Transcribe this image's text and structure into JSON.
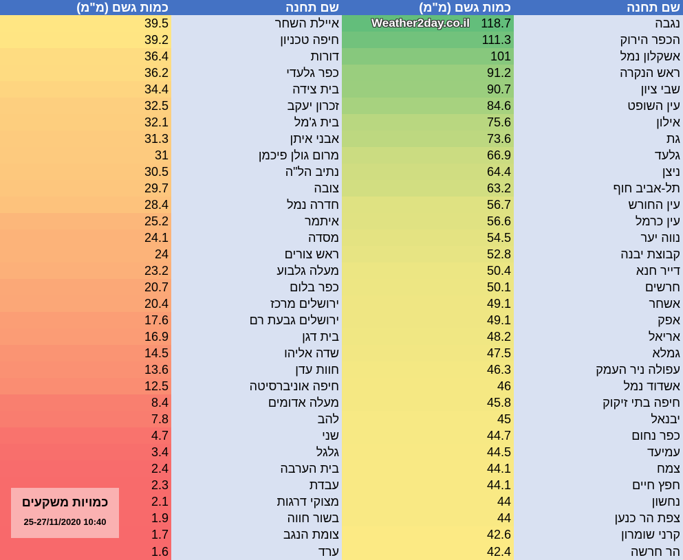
{
  "headers": {
    "station": "שם תחנה",
    "rain": "כמות גשם (מ\"מ)"
  },
  "watermark": "Weather2day.co.il",
  "note": {
    "title": "כמויות משקעים",
    "date": "25-27/11/2020 10:40"
  },
  "colors": {
    "header": "#4472C4",
    "name_bg": "#D9E1F2",
    "scale_min": "#F8696B",
    "scale_mid": "#FFEB84",
    "scale_max": "#63BE7B"
  },
  "right_table": [
    [
      "נגבה",
      "118.7"
    ],
    [
      "הכפר הירוק",
      "111.3"
    ],
    [
      "אשקלון נמל",
      "101"
    ],
    [
      "ראש הנקרה",
      "91.2"
    ],
    [
      "שבי ציון",
      "90.7"
    ],
    [
      "עין השופט",
      "84.6"
    ],
    [
      "אילון",
      "75.6"
    ],
    [
      "גת",
      "73.6"
    ],
    [
      "גלעד",
      "66.9"
    ],
    [
      "ניצן",
      "64.4"
    ],
    [
      "תל-אביב חוף",
      "63.2"
    ],
    [
      "עין החורש",
      "56.7"
    ],
    [
      "עין כרמל",
      "56.6"
    ],
    [
      "נווה יער",
      "54.5"
    ],
    [
      "קבוצת יבנה",
      "52.8"
    ],
    [
      "דייר חנא",
      "50.4"
    ],
    [
      "חרשים",
      "50.1"
    ],
    [
      "אשחר",
      "49.1"
    ],
    [
      "אפק",
      "49.1"
    ],
    [
      "אריאל",
      "48.2"
    ],
    [
      "גמלא",
      "47.5"
    ],
    [
      "עפולה ניר העמק",
      "46.3"
    ],
    [
      "אשדוד נמל",
      "46"
    ],
    [
      "חיפה בתי זיקוק",
      "45.8"
    ],
    [
      "יבנאל",
      "45"
    ],
    [
      "כפר נחום",
      "44.7"
    ],
    [
      "עמיעד",
      "44.5"
    ],
    [
      "צמח",
      "44.1"
    ],
    [
      "חפץ חיים",
      "44.1"
    ],
    [
      "נחשון",
      "44"
    ],
    [
      "צפת הר כנען",
      "44"
    ],
    [
      "קרני שומרון",
      "42.6"
    ],
    [
      "הר חרשה",
      "42.4"
    ]
  ],
  "left_table": [
    [
      "איילת השחר",
      "39.5"
    ],
    [
      "חיפה טכניון",
      "39.2"
    ],
    [
      "דורות",
      "36.4"
    ],
    [
      "כפר גלעדי",
      "36.2"
    ],
    [
      "בית צידה",
      "34.4"
    ],
    [
      "זכרון יעקב",
      "32.5"
    ],
    [
      "בית ג'מל",
      "32.1"
    ],
    [
      "אבני איתן",
      "31.3"
    ],
    [
      "מרום גולן פיכמן",
      "31"
    ],
    [
      "נתיב הל\"ה",
      "30.5"
    ],
    [
      "צובה",
      "29.7"
    ],
    [
      "חדרה נמל",
      "28.4"
    ],
    [
      "איתמר",
      "25.2"
    ],
    [
      "מסדה",
      "24.1"
    ],
    [
      "ראש צורים",
      "24"
    ],
    [
      "מעלה גלבוע",
      "23.2"
    ],
    [
      "כפר בלום",
      "20.7"
    ],
    [
      "ירושלים מרכז",
      "20.4"
    ],
    [
      "ירושלים גבעת רם",
      "17.6"
    ],
    [
      "בית דגן",
      "16.9"
    ],
    [
      "שדה אליהו",
      "14.5"
    ],
    [
      "חוות עדן",
      "13.6"
    ],
    [
      "חיפה אוניברסיטה",
      "12.5"
    ],
    [
      "מעלה אדומים",
      "8.4"
    ],
    [
      "להב",
      "7.8"
    ],
    [
      "שני",
      "4.7"
    ],
    [
      "גלגל",
      "3.4"
    ],
    [
      "בית הערבה",
      "2.4"
    ],
    [
      "עבדת",
      "2.3"
    ],
    [
      "מצוקי דרגות",
      "2.1"
    ],
    [
      "בשור חווה",
      "1.9"
    ],
    [
      "צומת הנגב",
      "1.7"
    ],
    [
      "ערד",
      "1.6"
    ]
  ]
}
